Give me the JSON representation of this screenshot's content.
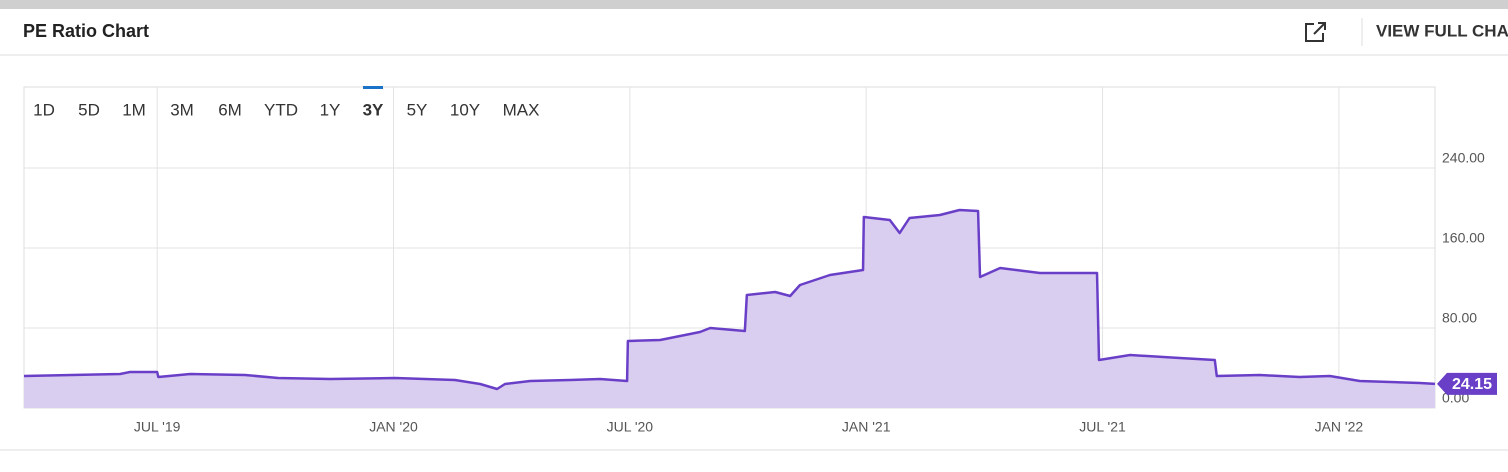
{
  "chart_data": {
    "type": "area",
    "title": "PE Ratio Chart",
    "link_text": "VIEW FULL CHART",
    "ranges": [
      "1D",
      "5D",
      "1M",
      "3M",
      "6M",
      "YTD",
      "1Y",
      "3Y",
      "5Y",
      "10Y",
      "MAX"
    ],
    "selected_range": "3Y",
    "x": [
      -3.38,
      -0.94,
      -0.69,
      0,
      0.03,
      0.84,
      2.23,
      3.07,
      4.39,
      6.04,
      7.56,
      8.2,
      8.63,
      8.83,
      9.47,
      10.48,
      11.24,
      11.93,
      11.95,
      12.77,
      13.78,
      14.04,
      14.92,
      14.97,
      15.69,
      16.07,
      16.32,
      17.08,
      17.92,
      17.94,
      18.6,
      18.85,
      19.1,
      19.87,
      20.37,
      20.84,
      20.89,
      21.4,
      22.41,
      23.86,
      23.91,
      24.7,
      25.96,
      26.85,
      26.9,
      27.99,
      29.0,
      29.77,
      30.53,
      32.05,
      32.44
    ],
    "series": [
      {
        "name": "PE Ratio",
        "color": "#6a3fc8",
        "fill": "#d9cdf0",
        "values": [
          32,
          34,
          36,
          36,
          31,
          34,
          33,
          30,
          29,
          30,
          28,
          24,
          19,
          24,
          27,
          28,
          29,
          27,
          67,
          68,
          76,
          80,
          77,
          113,
          116,
          112,
          123,
          133,
          138,
          191,
          188,
          175,
          190,
          193,
          198,
          197,
          131,
          140,
          135,
          135,
          48,
          53,
          50,
          48,
          32,
          33,
          31,
          32,
          27,
          25,
          24.15
        ]
      }
    ],
    "xlim": [
      -3.38,
      32.44
    ],
    "xticks": [
      {
        "value": 0,
        "label": "JUL '19"
      },
      {
        "value": 6,
        "label": "JAN '20"
      },
      {
        "value": 12,
        "label": "JUL '20"
      },
      {
        "value": 18,
        "label": "JAN '21"
      },
      {
        "value": 24,
        "label": "JUL '21"
      },
      {
        "value": 30,
        "label": "JAN '22"
      }
    ],
    "ylim": [
      0,
      321
    ],
    "yticks": [
      {
        "value": 0,
        "label": "0.00"
      },
      {
        "value": 80,
        "label": "80.00"
      },
      {
        "value": 160,
        "label": "160.00"
      },
      {
        "value": 240,
        "label": "240.00"
      }
    ],
    "grid": true
  }
}
